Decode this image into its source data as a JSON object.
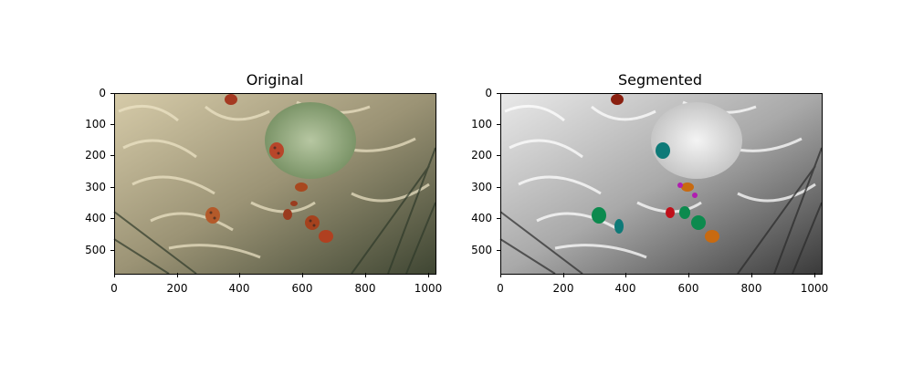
{
  "figure": {
    "panels": [
      {
        "id": "original",
        "title": "Original",
        "xticks": [
          "0",
          "200",
          "400",
          "600",
          "800",
          "1000"
        ],
        "yticks": [
          "0",
          "100",
          "200",
          "300",
          "400",
          "500"
        ]
      },
      {
        "id": "segmented",
        "title": "Segmented",
        "xticks": [
          "0",
          "200",
          "400",
          "600",
          "800",
          "1000"
        ],
        "yticks": [
          "0",
          "100",
          "200",
          "300",
          "400",
          "500"
        ]
      }
    ]
  },
  "colors": {
    "ladybug_red": "#a53a22",
    "ladybug_orange": "#c06420",
    "pod_green": "#8fa57a",
    "leaf_beige": "#cbbf98",
    "segment_green": "#0c8a4e",
    "segment_teal": "#0e7a78",
    "segment_red": "#c0101a",
    "segment_magenta": "#b01eb0",
    "segment_orange": "#c86a10",
    "segment_darkred": "#8a2010"
  }
}
